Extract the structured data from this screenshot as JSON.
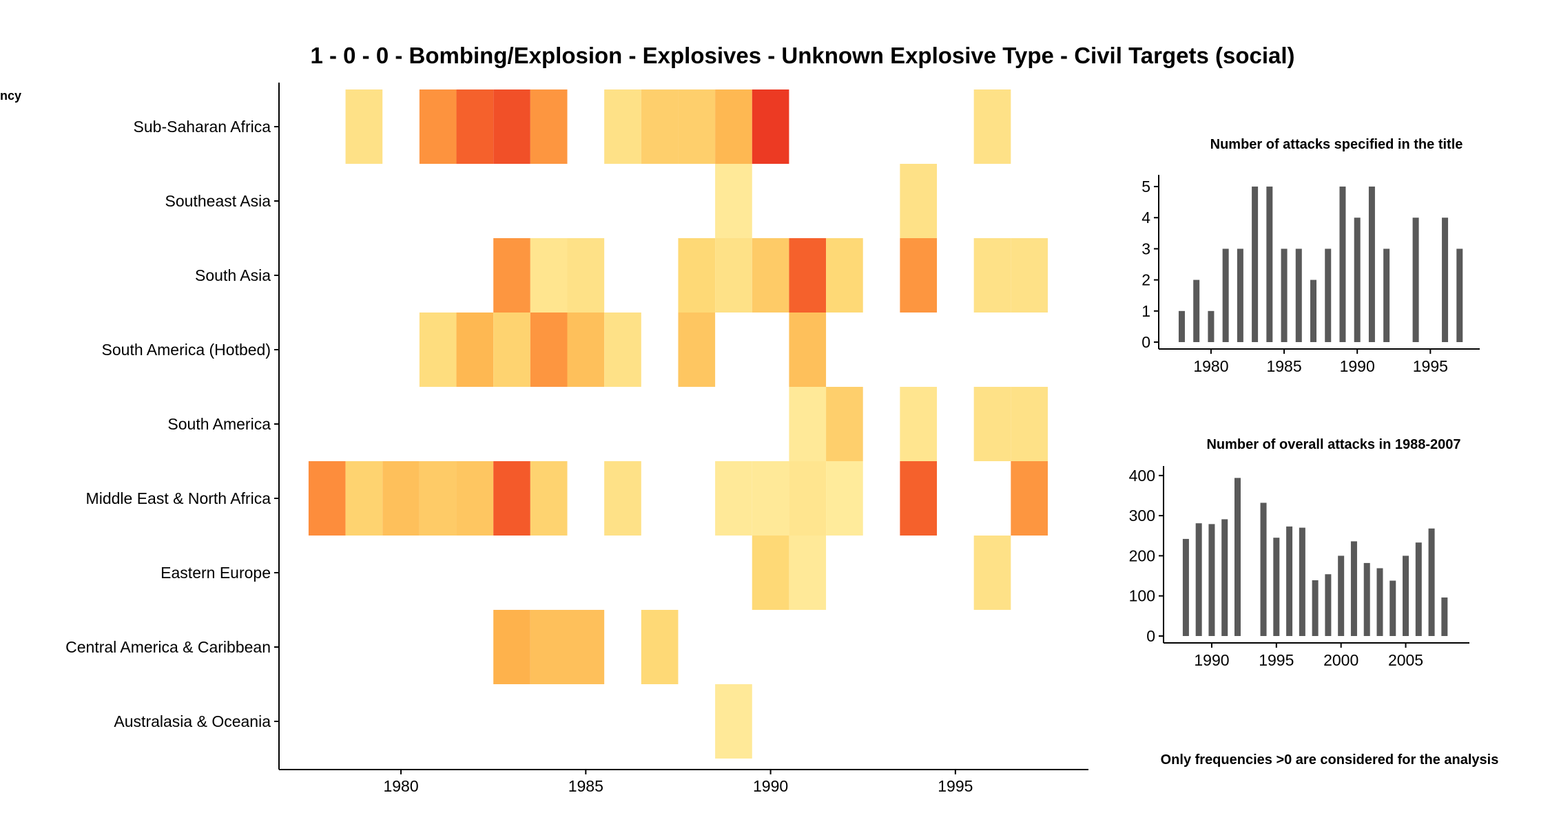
{
  "title": "1 - 0 - 0 - Bombing/Explosion - Explosives - Unknown Explosive Type - Civil Targets (social)",
  "legend_label_partial": "ncy",
  "footnote": "Only frequencies >0 are considered for the analysis",
  "colors": {
    "bar": "#595959",
    "axis": "#000000",
    "heat_low": "#ffeda0",
    "heat_high": "#e31a1c"
  },
  "chart_data": [
    {
      "type": "heatmap",
      "title": "1 - 0 - 0 - Bombing/Explosion - Explosives - Unknown Explosive Type - Civil Targets (social)",
      "x_ticks": [
        1980,
        1985,
        1990,
        1995
      ],
      "xlim": [
        1976.7,
        1998.6
      ],
      "rows": [
        "Sub-Saharan Africa",
        "Southeast Asia",
        "South Asia",
        "South America (Hotbed)",
        "South America",
        "Middle East & North Africa",
        "Eastern Europe",
        "Central America & Caribbean",
        "Australasia & Oceania"
      ],
      "scale": {
        "min": 0,
        "max": 1
      },
      "cells": [
        {
          "row": "Sub-Saharan Africa",
          "year": 1979,
          "value": 0.15
        },
        {
          "row": "Sub-Saharan Africa",
          "year": 1981,
          "value": 0.62
        },
        {
          "row": "Sub-Saharan Africa",
          "year": 1982,
          "value": 0.78
        },
        {
          "row": "Sub-Saharan Africa",
          "year": 1983,
          "value": 0.83
        },
        {
          "row": "Sub-Saharan Africa",
          "year": 1984,
          "value": 0.6
        },
        {
          "row": "Sub-Saharan Africa",
          "year": 1986,
          "value": 0.15
        },
        {
          "row": "Sub-Saharan Africa",
          "year": 1987,
          "value": 0.3
        },
        {
          "row": "Sub-Saharan Africa",
          "year": 1988,
          "value": 0.3
        },
        {
          "row": "Sub-Saharan Africa",
          "year": 1989,
          "value": 0.42
        },
        {
          "row": "Sub-Saharan Africa",
          "year": 1990,
          "value": 0.9
        },
        {
          "row": "Sub-Saharan Africa",
          "year": 1996,
          "value": 0.15
        },
        {
          "row": "Southeast Asia",
          "year": 1989,
          "value": 0.05
        },
        {
          "row": "Southeast Asia",
          "year": 1994,
          "value": 0.15
        },
        {
          "row": "South Asia",
          "year": 1983,
          "value": 0.6
        },
        {
          "row": "South Asia",
          "year": 1984,
          "value": 0.1
        },
        {
          "row": "South Asia",
          "year": 1985,
          "value": 0.15
        },
        {
          "row": "South Asia",
          "year": 1988,
          "value": 0.25
        },
        {
          "row": "South Asia",
          "year": 1989,
          "value": 0.15
        },
        {
          "row": "South Asia",
          "year": 1990,
          "value": 0.32
        },
        {
          "row": "South Asia",
          "year": 1991,
          "value": 0.78
        },
        {
          "row": "South Asia",
          "year": 1992,
          "value": 0.25
        },
        {
          "row": "South Asia",
          "year": 1994,
          "value": 0.6
        },
        {
          "row": "South Asia",
          "year": 1996,
          "value": 0.15
        },
        {
          "row": "South Asia",
          "year": 1997,
          "value": 0.15
        },
        {
          "row": "South America (Hotbed)",
          "year": 1981,
          "value": 0.2
        },
        {
          "row": "South America (Hotbed)",
          "year": 1982,
          "value": 0.42
        },
        {
          "row": "South America (Hotbed)",
          "year": 1983,
          "value": 0.28
        },
        {
          "row": "South America (Hotbed)",
          "year": 1984,
          "value": 0.6
        },
        {
          "row": "South America (Hotbed)",
          "year": 1985,
          "value": 0.38
        },
        {
          "row": "South America (Hotbed)",
          "year": 1986,
          "value": 0.15
        },
        {
          "row": "South America (Hotbed)",
          "year": 1988,
          "value": 0.35
        },
        {
          "row": "South America (Hotbed)",
          "year": 1991,
          "value": 0.38
        },
        {
          "row": "South America",
          "year": 1991,
          "value": 0.05
        },
        {
          "row": "South America",
          "year": 1992,
          "value": 0.3
        },
        {
          "row": "South America",
          "year": 1994,
          "value": 0.1
        },
        {
          "row": "South America",
          "year": 1996,
          "value": 0.15
        },
        {
          "row": "South America",
          "year": 1997,
          "value": 0.15
        },
        {
          "row": "Middle East & North Africa",
          "year": 1978,
          "value": 0.65
        },
        {
          "row": "Middle East & North Africa",
          "year": 1979,
          "value": 0.28
        },
        {
          "row": "Middle East & North Africa",
          "year": 1980,
          "value": 0.38
        },
        {
          "row": "Middle East & North Africa",
          "year": 1981,
          "value": 0.32
        },
        {
          "row": "Middle East & North Africa",
          "year": 1982,
          "value": 0.35
        },
        {
          "row": "Middle East & North Africa",
          "year": 1983,
          "value": 0.8
        },
        {
          "row": "Middle East & North Africa",
          "year": 1984,
          "value": 0.28
        },
        {
          "row": "Middle East & North Africa",
          "year": 1986,
          "value": 0.15
        },
        {
          "row": "Middle East & North Africa",
          "year": 1989,
          "value": 0.05
        },
        {
          "row": "Middle East & North Africa",
          "year": 1990,
          "value": 0.05
        },
        {
          "row": "Middle East & North Africa",
          "year": 1991,
          "value": 0.1
        },
        {
          "row": "Middle East & North Africa",
          "year": 1992,
          "value": 0.03
        },
        {
          "row": "Middle East & North Africa",
          "year": 1994,
          "value": 0.78
        },
        {
          "row": "Middle East & North Africa",
          "year": 1997,
          "value": 0.6
        },
        {
          "row": "Eastern Europe",
          "year": 1990,
          "value": 0.25
        },
        {
          "row": "Eastern Europe",
          "year": 1991,
          "value": 0.05
        },
        {
          "row": "Eastern Europe",
          "year": 1996,
          "value": 0.15
        },
        {
          "row": "Central America & Caribbean",
          "year": 1983,
          "value": 0.45
        },
        {
          "row": "Central America & Caribbean",
          "year": 1984,
          "value": 0.38
        },
        {
          "row": "Central America & Caribbean",
          "year": 1985,
          "value": 0.38
        },
        {
          "row": "Central America & Caribbean",
          "year": 1987,
          "value": 0.25
        },
        {
          "row": "Australasia & Oceania",
          "year": 1989,
          "value": 0.05
        }
      ]
    },
    {
      "type": "bar",
      "title": "Number of attacks specified in the title",
      "x": [
        1978,
        1979,
        1980,
        1981,
        1982,
        1983,
        1984,
        1985,
        1986,
        1987,
        1988,
        1989,
        1990,
        1991,
        1992,
        1993,
        1994,
        1995,
        1996,
        1997
      ],
      "values": [
        1,
        2,
        1,
        3,
        3,
        5,
        5,
        3,
        3,
        2,
        3,
        5,
        4,
        5,
        3,
        0,
        4,
        0,
        4,
        3
      ],
      "x_ticks": [
        1980,
        1985,
        1990,
        1995
      ],
      "y_ticks": [
        0,
        1,
        2,
        3,
        4,
        5
      ],
      "xlim": [
        1976.8,
        1998.0
      ],
      "ylim": [
        0,
        5.2
      ]
    },
    {
      "type": "bar",
      "title": "Number of overall attacks in 1988-2007",
      "x": [
        1988,
        1989,
        1990,
        1991,
        1992,
        1993,
        1994,
        1995,
        1996,
        1997,
        1998,
        1999,
        2000,
        2001,
        2002,
        2003,
        2004,
        2005,
        2006,
        2007,
        2008
      ],
      "values": [
        242,
        281,
        279,
        291,
        394,
        0,
        332,
        245,
        273,
        270,
        139,
        154,
        200,
        236,
        182,
        169,
        138,
        200,
        233,
        268,
        96
      ],
      "x_ticks": [
        1990,
        1995,
        2000,
        2005
      ],
      "y_ticks": [
        0,
        100,
        200,
        300,
        400
      ],
      "xlim": [
        1986.7,
        2009.5
      ],
      "ylim": [
        0,
        410
      ]
    }
  ]
}
